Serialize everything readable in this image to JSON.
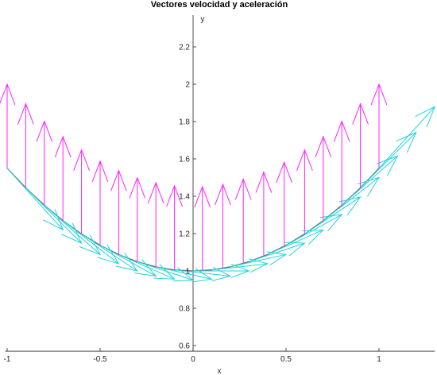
{
  "chart_data": {
    "type": "line",
    "title": "Vectores velocidad y aceleración",
    "xlabel": "x",
    "ylabel": "y",
    "xlim": [
      -1.01,
      1.3
    ],
    "ylim": [
      0.57,
      2.37
    ],
    "x_ticks": [
      -1,
      -0.5,
      0,
      0.5,
      1
    ],
    "x_tick_labels": [
      "-1",
      "-0.5",
      "0",
      "0.5",
      "1"
    ],
    "y_ticks": [
      0.6,
      0.8,
      1,
      1.2,
      1.4,
      1.6,
      1.8,
      2,
      2.2
    ],
    "y_tick_labels": [
      "0.6",
      "0.8",
      "1",
      "1.2",
      "1.4",
      "1.6",
      "1.8",
      "2",
      "2.2"
    ],
    "grid": false,
    "axes_location": "origin",
    "series": [
      {
        "kind": "curve",
        "color": "#6e6e6e",
        "x": [
          -1,
          -0.9,
          -0.8,
          -0.7,
          -0.6,
          -0.5,
          -0.4,
          -0.3,
          -0.2,
          -0.1,
          0,
          0.1,
          0.2,
          0.3,
          0.4,
          0.5,
          0.6,
          0.7,
          0.8,
          0.9,
          1
        ],
        "y": [
          1.55,
          1.4455,
          1.352,
          1.2695,
          1.198,
          1.1375,
          1.088,
          1.0495,
          1.022,
          1.0055,
          1,
          1.0055,
          1.022,
          1.0495,
          1.088,
          1.1375,
          1.198,
          1.2695,
          1.352,
          1.4455,
          1.55
        ]
      },
      {
        "kind": "velocity-vectors",
        "color": "#22d3dd",
        "x": [
          -1,
          -0.9,
          -0.8,
          -0.7,
          -0.6,
          -0.5,
          -0.4,
          -0.3,
          -0.2,
          -0.1,
          0,
          0.1,
          0.2,
          0.3,
          0.4,
          0.5,
          0.6,
          0.7,
          0.8,
          0.9,
          1
        ],
        "y": [
          1.55,
          1.4455,
          1.352,
          1.2695,
          1.198,
          1.1375,
          1.088,
          1.0495,
          1.022,
          1.0055,
          1,
          1.0055,
          1.022,
          1.0495,
          1.088,
          1.1375,
          1.198,
          1.2695,
          1.352,
          1.4455,
          1.55
        ],
        "u": [
          0.3,
          0.3,
          0.3,
          0.3,
          0.3,
          0.3,
          0.3,
          0.3,
          0.3,
          0.3,
          0.3,
          0.3,
          0.3,
          0.3,
          0.3,
          0.3,
          0.3,
          0.3,
          0.3,
          0.3,
          0.3
        ],
        "v": [
          -0.33,
          -0.297,
          -0.264,
          -0.231,
          -0.198,
          -0.165,
          -0.132,
          -0.099,
          -0.066,
          -0.033,
          0,
          0.033,
          0.066,
          0.099,
          0.132,
          0.165,
          0.198,
          0.231,
          0.264,
          0.297,
          0.33
        ]
      },
      {
        "kind": "acceleration-vectors",
        "color": "#ff22ff",
        "x": [
          -1,
          -0.9,
          -0.8,
          -0.7,
          -0.6,
          -0.5,
          -0.4,
          -0.3,
          -0.2,
          -0.1,
          0.05,
          0.16,
          0.27,
          0.38,
          0.49,
          0.6,
          0.7,
          0.8,
          0.9,
          1
        ],
        "y": [
          1.55,
          1.4455,
          1.352,
          1.2695,
          1.198,
          1.1375,
          1.088,
          1.0495,
          1.022,
          1.0055,
          1.001,
          1.0135,
          1.042,
          1.0795,
          1.1325,
          1.198,
          1.2695,
          1.352,
          1.4455,
          1.55
        ],
        "u": [
          0,
          0,
          0,
          0,
          0,
          0,
          0,
          0,
          0,
          0,
          0,
          0,
          0,
          0,
          0,
          0,
          0,
          0,
          0,
          0
        ],
        "v": [
          0.45,
          0.45,
          0.45,
          0.45,
          0.45,
          0.45,
          0.45,
          0.45,
          0.45,
          0.45,
          0.45,
          0.45,
          0.45,
          0.45,
          0.45,
          0.45,
          0.45,
          0.45,
          0.45,
          0.45
        ]
      }
    ]
  }
}
